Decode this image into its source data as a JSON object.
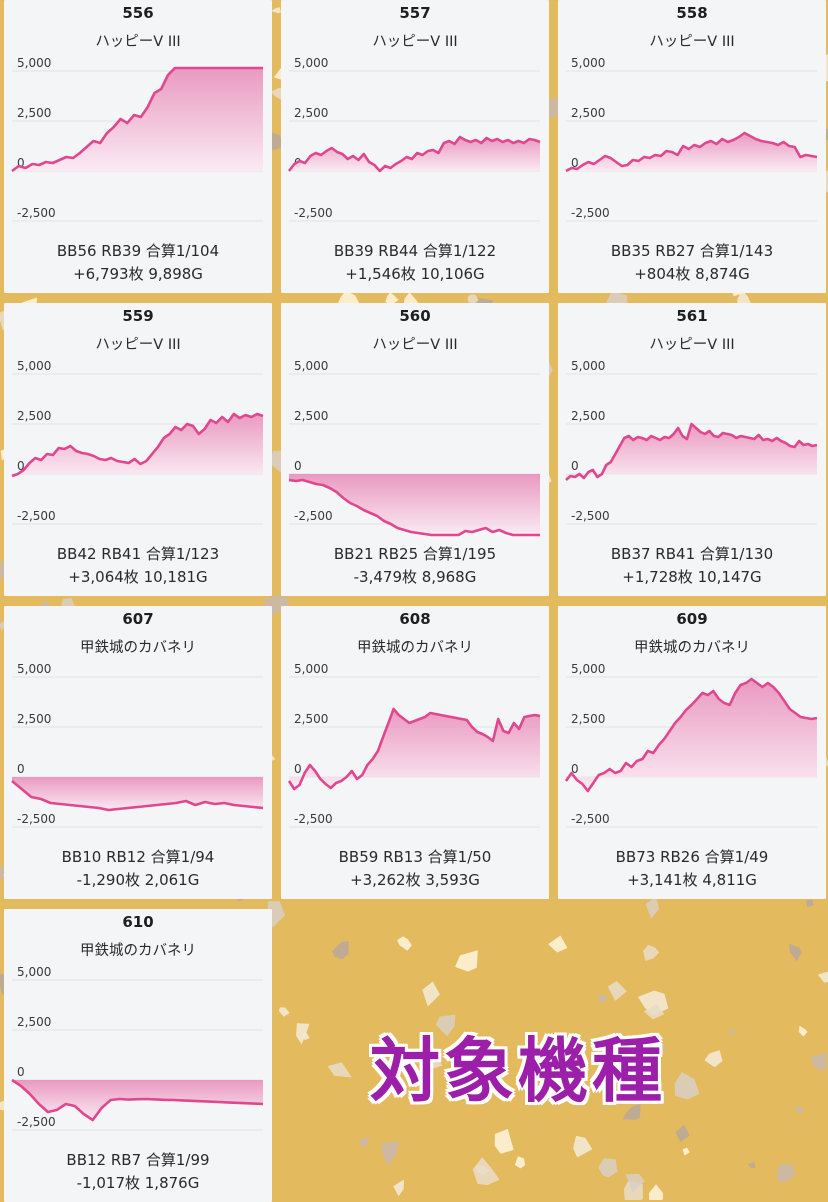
{
  "banner": {
    "text": "対象機種"
  },
  "y_ticks": [
    "5,000",
    "2,500",
    "0",
    "-2,500"
  ],
  "colors": {
    "line": "#e0478f",
    "fill_top": "#e88fbb",
    "fill_bottom": "#fbe9f2",
    "background": "#e3bb5e"
  },
  "chart_data": [
    {
      "type": "line",
      "title": "556",
      "subtitle": "ハッピーV III",
      "ylim": [
        -3500,
        5200
      ],
      "stat1": "BB56 RB39 合算1/104",
      "stat2": "+6,793枚 9,898G",
      "values": [
        0,
        250,
        150,
        350,
        300,
        450,
        400,
        550,
        700,
        650,
        900,
        1200,
        1500,
        1400,
        1900,
        2200,
        2600,
        2400,
        2800,
        2700,
        3200,
        3900,
        4100,
        4800,
        5200,
        5200,
        5200,
        5200,
        5200,
        5200,
        5200,
        5200,
        5200,
        5200,
        5200,
        5200,
        5200,
        5200
      ]
    },
    {
      "type": "line",
      "title": "557",
      "subtitle": "ハッピーV III",
      "ylim": [
        -3500,
        5200
      ],
      "stat1": "BB39 RB44 合算1/122",
      "stat2": "+1,546枚 10,106G",
      "values": [
        0,
        350,
        500,
        400,
        750,
        900,
        800,
        1000,
        1150,
        950,
        850,
        600,
        750,
        550,
        850,
        450,
        300,
        0,
        250,
        150,
        350,
        500,
        700,
        600,
        900,
        800,
        1000,
        1050,
        900,
        1400,
        1500,
        1350,
        1700,
        1550,
        1450,
        1550,
        1400,
        1650,
        1500,
        1600,
        1450,
        1550,
        1400,
        1500,
        1400,
        1600,
        1550,
        1450
      ]
    },
    {
      "type": "line",
      "title": "558",
      "subtitle": "ハッピーV III",
      "ylim": [
        -3500,
        5200
      ],
      "stat1": "BB35 RB27 合算1/143",
      "stat2": "+804枚 8,874G",
      "values": [
        0,
        150,
        100,
        300,
        450,
        350,
        550,
        750,
        650,
        450,
        250,
        300,
        550,
        500,
        700,
        650,
        800,
        750,
        1000,
        950,
        800,
        1250,
        1100,
        1300,
        1200,
        1400,
        1500,
        1350,
        1600,
        1450,
        1550,
        1700,
        1900,
        1750,
        1600,
        1500,
        1450,
        1400,
        1300,
        1450,
        1250,
        1200,
        700,
        800,
        750,
        700
      ]
    },
    {
      "type": "line",
      "title": "559",
      "subtitle": "ハッピーV III",
      "ylim": [
        -3500,
        5200
      ],
      "stat1": "BB42 RB41 合算1/123",
      "stat2": "+3,064枚 10,181G",
      "values": [
        -100,
        0,
        200,
        550,
        800,
        700,
        1000,
        950,
        1300,
        1250,
        1400,
        1150,
        1050,
        1000,
        900,
        750,
        700,
        800,
        650,
        600,
        550,
        750,
        500,
        650,
        1000,
        1350,
        1800,
        2000,
        2350,
        2200,
        2500,
        2400,
        2000,
        2250,
        2700,
        2550,
        2850,
        2600,
        3000,
        2800,
        2950,
        2850,
        3000,
        2900
      ]
    },
    {
      "type": "line",
      "title": "560",
      "subtitle": "ハッピーV III",
      "ylim": [
        -3500,
        5200
      ],
      "stat1": "BB21 RB25 合算1/195",
      "stat2": "-3,479枚 8,968G",
      "values": [
        -300,
        -350,
        -300,
        -400,
        -500,
        -550,
        -700,
        -900,
        -1200,
        -1450,
        -1600,
        -1800,
        -1950,
        -2100,
        -2350,
        -2500,
        -2700,
        -2800,
        -2900,
        -2950,
        -3000,
        -3100,
        -3200,
        -3150,
        -3250,
        -3100,
        -2850,
        -2900,
        -2800,
        -2700,
        -2900,
        -2800,
        -2950,
        -3200,
        -3600,
        -3700,
        -3700,
        -3700
      ]
    },
    {
      "type": "line",
      "title": "561",
      "subtitle": "ハッピーV III",
      "ylim": [
        -3500,
        5200
      ],
      "stat1": "BB37 RB41 合算1/130",
      "stat2": "+1,728枚 10,147G",
      "values": [
        -300,
        -100,
        -150,
        0,
        -200,
        100,
        200,
        -150,
        0,
        450,
        600,
        1000,
        1400,
        1800,
        1900,
        1700,
        1850,
        1800,
        1700,
        1900,
        1800,
        1700,
        1850,
        1800,
        2000,
        2300,
        1900,
        1750,
        2500,
        2300,
        2100,
        2000,
        2150,
        1900,
        1850,
        2050,
        2000,
        1950,
        1800,
        1900,
        1850,
        1800,
        1750,
        1950,
        1700,
        1750,
        1650,
        1800,
        1650,
        1550,
        1400,
        1350,
        1650,
        1450,
        1500,
        1400,
        1450
      ]
    },
    {
      "type": "line",
      "title": "607",
      "subtitle": "甲鉄城のカバネリ",
      "ylim": [
        -3500,
        5200
      ],
      "stat1": "BB10 RB12 合算1/94",
      "stat2": "-1,290枚 2,061G",
      "values": [
        -200,
        -600,
        -1000,
        -1100,
        -1300,
        -1350,
        -1400,
        -1450,
        -1500,
        -1550,
        -1650,
        -1600,
        -1550,
        -1500,
        -1450,
        -1400,
        -1350,
        -1300,
        -1200,
        -1400,
        -1250,
        -1350,
        -1300,
        -1400,
        -1450,
        -1500,
        -1550
      ]
    },
    {
      "type": "line",
      "title": "608",
      "subtitle": "甲鉄城のカバネリ",
      "ylim": [
        -3500,
        5200
      ],
      "stat1": "BB59 RB13 合算1/50",
      "stat2": "+3,262枚 3,593G",
      "values": [
        -200,
        -600,
        -400,
        200,
        600,
        300,
        -100,
        -350,
        -550,
        -300,
        -200,
        0,
        300,
        -100,
        100,
        600,
        900,
        1300,
        2000,
        2700,
        3400,
        3100,
        2900,
        2700,
        2800,
        2900,
        3000,
        3200,
        3150,
        3100,
        3050,
        3000,
        2950,
        2900,
        2850,
        2500,
        2250,
        2150,
        2000,
        1800,
        2900,
        2300,
        2200,
        2700,
        2400,
        3000,
        3050,
        3100,
        3050
      ]
    },
    {
      "type": "line",
      "title": "609",
      "subtitle": "甲鉄城のカバネリ",
      "ylim": [
        -3500,
        5200
      ],
      "stat1": "BB73 RB26 合算1/49",
      "stat2": "+3,141枚 4,811G",
      "values": [
        -200,
        200,
        -150,
        -350,
        -700,
        -300,
        100,
        200,
        400,
        200,
        300,
        700,
        500,
        800,
        900,
        1300,
        1200,
        1600,
        1900,
        2300,
        2700,
        3000,
        3350,
        3600,
        3900,
        4200,
        4100,
        4300,
        3900,
        3700,
        3600,
        4200,
        4600,
        4700,
        4900,
        4700,
        4500,
        4700,
        4500,
        4200,
        3800,
        3400,
        3200,
        3000,
        2950,
        2900,
        2950
      ]
    },
    {
      "type": "line",
      "title": "610",
      "subtitle": "甲鉄城のカバネリ",
      "ylim": [
        -3500,
        5200
      ],
      "stat1": "BB12 RB7 合算1/99",
      "stat2": "-1,017枚 1,876G",
      "values": [
        0,
        -300,
        -700,
        -1200,
        -1600,
        -1500,
        -1200,
        -1300,
        -1700,
        -2000,
        -1400,
        -1000,
        -950,
        -980,
        -960,
        -950,
        -970,
        -990,
        -1000,
        -1020,
        -1040,
        -1060,
        -1080,
        -1100,
        -1120,
        -1140,
        -1160,
        -1180,
        -1200
      ]
    }
  ]
}
